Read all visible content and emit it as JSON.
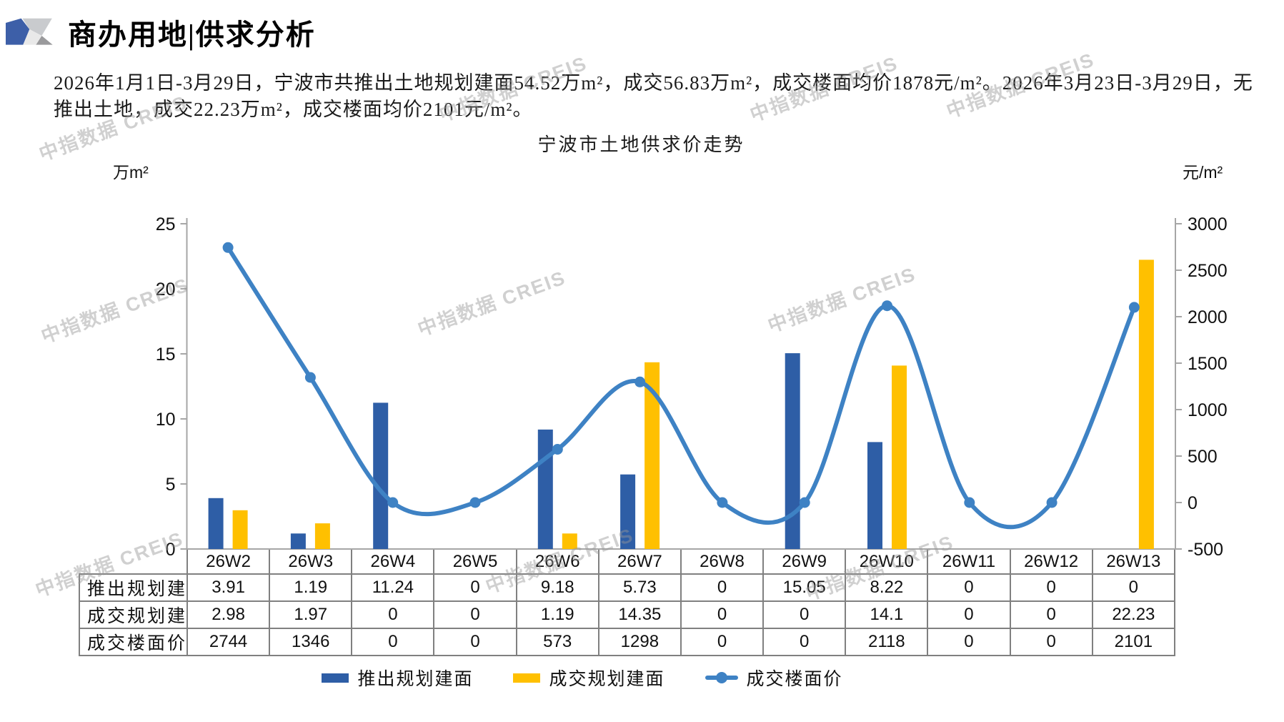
{
  "header": {
    "title": "商办用地|供求分析"
  },
  "intro": {
    "line1": "2026年1月1日-3月29日，宁波市共推出土地规划建面54.52万m²，成交56.83万m²，成交楼面均价1878元/m²。2026年3月23日-3月29日，无",
    "line2": "推出土地，成交22.23万m²，成交楼面均价2101元/m²。"
  },
  "watermark": {
    "text": "中指数据 CREIS"
  },
  "colors": {
    "bar_blue": "#2E5EA6",
    "bar_yellow": "#FFC000",
    "line_blue": "#3E82C4",
    "axis_grey": "#A6A6A6",
    "table_border": "#808080",
    "logo_blue": "#3D5FA8",
    "logo_grey_light": "#C9CBCE",
    "logo_grey_mid": "#9A9A9C",
    "logo_grey_pale": "#E9E9E9"
  },
  "chart_data": {
    "type": "combo-bar-line",
    "title": "宁波市土地供求价走势",
    "categories": [
      "26W2",
      "26W3",
      "26W4",
      "26W5",
      "26W6",
      "26W7",
      "26W8",
      "26W9",
      "26W10",
      "26W11",
      "26W12",
      "26W13"
    ],
    "left_axis": {
      "unit": "万m²",
      "min": 0,
      "max": 25,
      "ticks": [
        0,
        5,
        10,
        15,
        20,
        25
      ]
    },
    "right_axis": {
      "unit": "元/m²",
      "min": -500,
      "max": 3000,
      "ticks": [
        3000,
        2500,
        2000,
        1500,
        1000,
        500,
        0,
        -500
      ]
    },
    "grid": false,
    "legend_position": "bottom",
    "series": [
      {
        "name": "推出规划建面",
        "type": "bar",
        "axis": "left",
        "color": "#2E5EA6",
        "values": [
          3.91,
          1.19,
          11.24,
          0,
          9.18,
          5.73,
          0,
          15.05,
          8.22,
          0,
          0,
          0
        ]
      },
      {
        "name": "成交规划建面",
        "type": "bar",
        "axis": "left",
        "color": "#FFC000",
        "values": [
          2.98,
          1.97,
          0,
          0,
          1.19,
          14.35,
          0,
          0,
          14.1,
          0,
          0,
          22.23
        ]
      },
      {
        "name": "成交楼面价",
        "type": "line",
        "axis": "right",
        "color": "#3E82C4",
        "values": [
          2744,
          1346,
          0,
          0,
          573,
          1298,
          0,
          0,
          2118,
          0,
          0,
          2101
        ]
      }
    ]
  }
}
